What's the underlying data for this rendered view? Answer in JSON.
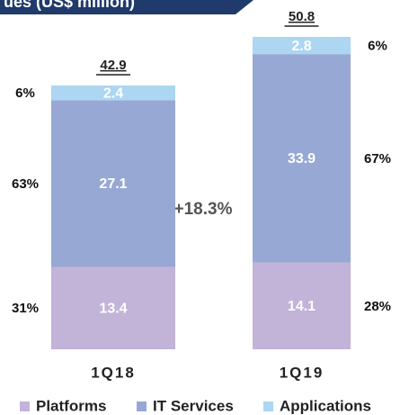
{
  "chart_data": {
    "type": "stacked_bar",
    "title": "ues (US$ million)",
    "categories": [
      "1Q18",
      "1Q19"
    ],
    "series": [
      {
        "name": "Platforms",
        "color": "#c2b3d9",
        "values": [
          13.4,
          14.1
        ],
        "share_labels": [
          "31%",
          "28%"
        ]
      },
      {
        "name": "IT Services",
        "color": "#96a8d3",
        "values": [
          27.1,
          33.9
        ],
        "share_labels": [
          "63%",
          "67%"
        ]
      },
      {
        "name": "Applications",
        "color": "#acd6f2",
        "values": [
          2.4,
          2.8
        ],
        "share_labels": [
          "6%",
          "6%"
        ]
      }
    ],
    "totals": [
      42.9,
      50.8
    ],
    "annotation": "+18.3%"
  }
}
